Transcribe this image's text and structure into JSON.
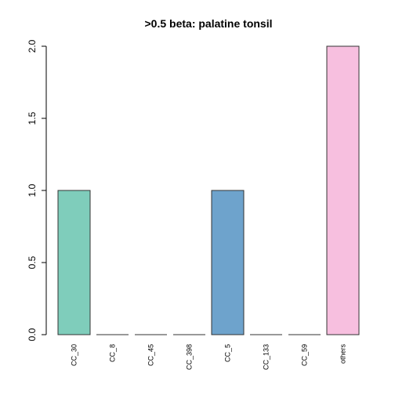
{
  "chart_data": {
    "type": "bar",
    "title": ">0.5 beta:  palatine tonsil",
    "xlabel": "",
    "ylabel": "",
    "categories": [
      "CC_30",
      "CC_8",
      "CC_45",
      "CC_398",
      "CC_5",
      "CC_133",
      "CC_59",
      "others"
    ],
    "values": [
      1,
      0,
      0,
      0,
      1,
      0,
      0,
      2
    ],
    "colors": [
      "#7fcdbb",
      "#7fcdbb",
      "#7fcdbb",
      "#7fcdbb",
      "#6ea3cc",
      "#6ea3cc",
      "#6ea3cc",
      "#f7bfdf"
    ],
    "ylim": [
      0,
      2
    ],
    "yticks": [
      0,
      0.5,
      1,
      1.5,
      2
    ],
    "ytick_labels": [
      "0.0",
      "0.5",
      "1.0",
      "1.5",
      "2.0"
    ],
    "grid": false,
    "legend": "none"
  }
}
